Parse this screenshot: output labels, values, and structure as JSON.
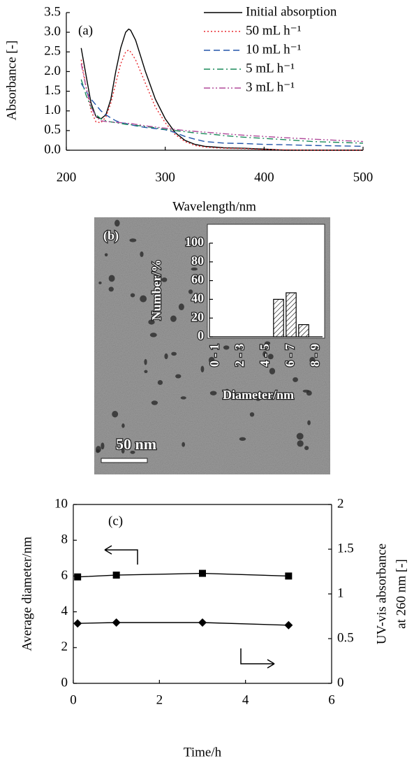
{
  "chart_data": [
    {
      "type": "line",
      "annotation": "(a)",
      "xlabel": "Wavelength/nm",
      "ylabel": "Absorbance [-]",
      "xlim": [
        200,
        500
      ],
      "xticks": [
        200,
        300,
        400,
        500
      ],
      "ylim": [
        0,
        3.5
      ],
      "yticks": [
        {
          "value": 0,
          "label": "0.0"
        },
        0.5,
        {
          "value": 1,
          "label": "1.0"
        },
        1.5,
        {
          "value": 2,
          "label": "2.0"
        },
        2.5,
        {
          "value": 3,
          "label": "3.0"
        },
        3.5
      ],
      "legend": "upper right",
      "x": [
        215,
        220,
        225,
        230,
        235,
        240,
        245,
        250,
        255,
        260,
        263,
        265,
        270,
        275,
        280,
        290,
        300,
        310,
        320,
        330,
        340,
        350,
        360,
        380,
        400,
        420,
        450,
        500
      ],
      "series": [
        {
          "name": "Initial absorption",
          "color": "#000000",
          "style": "solid",
          "values": [
            2.6,
            1.9,
            1.2,
            0.85,
            0.8,
            0.9,
            1.3,
            2.0,
            2.6,
            3.0,
            3.08,
            3.05,
            2.8,
            2.4,
            2.0,
            1.3,
            0.8,
            0.45,
            0.25,
            0.15,
            0.1,
            0.08,
            0.06,
            0.05,
            0.03,
            0,
            0,
            0
          ]
        },
        {
          "name": "50 mL h⁻¹",
          "color": "#e8282e",
          "style": "dotted",
          "values": [
            2.3,
            1.6,
            1.0,
            0.72,
            0.7,
            0.85,
            1.2,
            1.7,
            2.2,
            2.5,
            2.55,
            2.5,
            2.3,
            2.0,
            1.7,
            1.1,
            0.7,
            0.4,
            0.22,
            0.12,
            0.08,
            0.06,
            0.05,
            0.04,
            0.02,
            0.01,
            0,
            0
          ]
        },
        {
          "name": "10 mL h⁻¹",
          "color": "#2255aa",
          "style": "dashed",
          "values": [
            1.7,
            1.5,
            1.3,
            1.15,
            1.0,
            0.9,
            0.82,
            0.75,
            0.7,
            0.68,
            0.66,
            0.65,
            0.62,
            0.6,
            0.58,
            0.55,
            0.52,
            0.45,
            0.35,
            0.28,
            0.22,
            0.2,
            0.18,
            0.17,
            0.15,
            0.14,
            0.12,
            0.1
          ]
        },
        {
          "name": "5 mL h⁻¹",
          "color": "#1a8a5a",
          "style": "dashdot",
          "values": [
            1.8,
            1.4,
            1.1,
            0.9,
            0.8,
            0.75,
            0.72,
            0.7,
            0.68,
            0.66,
            0.65,
            0.65,
            0.63,
            0.62,
            0.6,
            0.57,
            0.53,
            0.5,
            0.47,
            0.44,
            0.42,
            0.4,
            0.37,
            0.33,
            0.3,
            0.27,
            0.22,
            0.18
          ]
        },
        {
          "name": "3 mL h⁻¹",
          "color": "#b04a9a",
          "style": "dashdotdot",
          "values": [
            2.2,
            1.6,
            1.1,
            0.85,
            0.75,
            0.73,
            0.72,
            0.71,
            0.7,
            0.69,
            0.68,
            0.68,
            0.66,
            0.64,
            0.62,
            0.59,
            0.56,
            0.53,
            0.5,
            0.48,
            0.46,
            0.44,
            0.42,
            0.38,
            0.35,
            0.32,
            0.28,
            0.22
          ]
        }
      ]
    },
    {
      "type": "bar",
      "annotation": "(b)",
      "scale_bar": "50 nm",
      "xlabel": "Diameter/nm",
      "ylabel": "Number/%",
      "categories": [
        "0 - 1",
        null,
        "2 - 3",
        null,
        "4 - 5",
        null,
        "6 - 7",
        null,
        "8 - 9"
      ],
      "values": [
        0,
        0,
        0,
        0,
        0,
        40,
        47,
        13,
        0
      ],
      "ylim": [
        0,
        100
      ],
      "yticks": [
        0,
        20,
        40,
        60,
        80,
        100
      ],
      "color": "#ffffff"
    },
    {
      "type": "line",
      "annotation": "(c)",
      "xlabel": "Time/h",
      "ylabel": "Average diameter/nm",
      "y2label": [
        "UV-vis absorbance",
        "at 260 nm [-]"
      ],
      "xlim": [
        0,
        6
      ],
      "xticks": [
        0,
        2,
        4,
        6
      ],
      "ylim": [
        0,
        10
      ],
      "yticks": [
        0,
        2,
        4,
        6,
        8,
        10
      ],
      "y2lim": [
        0,
        2
      ],
      "y2ticks": [
        0,
        0.5,
        1,
        1.5,
        2
      ],
      "x": [
        0.1,
        1,
        3,
        5
      ],
      "series": [
        {
          "color": "#000000",
          "style": "solid",
          "marker": "square",
          "values": [
            5.95,
            6.05,
            6.15,
            6.0
          ]
        },
        {
          "color": "#000000",
          "style": "solid",
          "marker": "diamond",
          "axis": "y2",
          "values": [
            0.67,
            0.68,
            0.68,
            0.65
          ]
        }
      ]
    }
  ]
}
